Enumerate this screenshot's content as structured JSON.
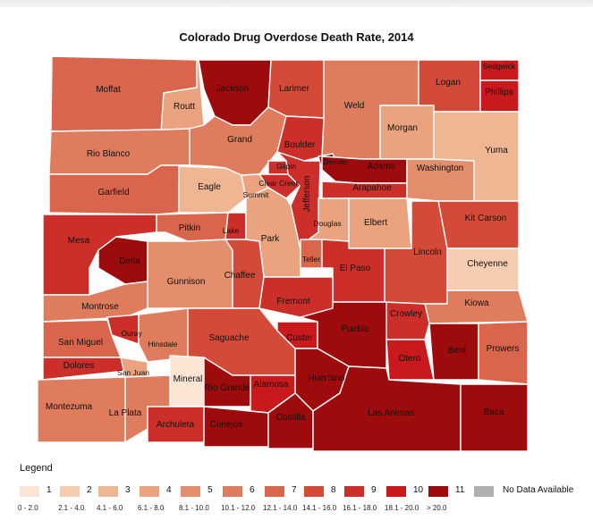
{
  "title": "Colorado Drug Overdose Death Rate, 2014",
  "colors": {
    "1": "#fbe6d6",
    "2": "#f6cdb0",
    "3": "#efb693",
    "4": "#eaa27f",
    "5": "#e38e6c",
    "6": "#df7c5e",
    "7": "#d9654c",
    "8": "#d44a39",
    "9": "#cc2e2a",
    "10": "#c8191c",
    "11": "#9e0b0d",
    "nodata": "#b0b0b0"
  },
  "counties": [
    {
      "name": "Moffat",
      "cls": 7
    },
    {
      "name": "Routt",
      "cls": 4
    },
    {
      "name": "Jackson",
      "cls": 11
    },
    {
      "name": "Larimer",
      "cls": 8
    },
    {
      "name": "Weld",
      "cls": 6
    },
    {
      "name": "Logan",
      "cls": 8
    },
    {
      "name": "Sedgwick",
      "cls": 10
    },
    {
      "name": "Phillips",
      "cls": 10
    },
    {
      "name": "Rio Blanco",
      "cls": 6
    },
    {
      "name": "Grand",
      "cls": 6
    },
    {
      "name": "Boulder",
      "cls": 9
    },
    {
      "name": "Morgan",
      "cls": 4
    },
    {
      "name": "Yuma",
      "cls": 3
    },
    {
      "name": "Garfield",
      "cls": 7
    },
    {
      "name": "Eagle",
      "cls": 3
    },
    {
      "name": "Summit",
      "cls": 4
    },
    {
      "name": "Gilpin",
      "cls": 9
    },
    {
      "name": "Clear Creek",
      "cls": 9
    },
    {
      "name": "Jefferson",
      "cls": 9
    },
    {
      "name": "Denver",
      "cls": 11
    },
    {
      "name": "Adams",
      "cls": 11
    },
    {
      "name": "Arapahoe",
      "cls": 9
    },
    {
      "name": "Washington",
      "cls": 5
    },
    {
      "name": "Douglas",
      "cls": 4
    },
    {
      "name": "Elbert",
      "cls": 4
    },
    {
      "name": "Kit Carson",
      "cls": 8
    },
    {
      "name": "Mesa",
      "cls": 9
    },
    {
      "name": "Delta",
      "cls": 11
    },
    {
      "name": "Pitkin",
      "cls": 7
    },
    {
      "name": "Lake",
      "cls": 9
    },
    {
      "name": "Park",
      "cls": 4
    },
    {
      "name": "Teller",
      "cls": 7
    },
    {
      "name": "El Paso",
      "cls": 9
    },
    {
      "name": "Lincoln",
      "cls": 8
    },
    {
      "name": "Cheyenne",
      "cls": 2
    },
    {
      "name": "Gunnison",
      "cls": 5
    },
    {
      "name": "Chaffee",
      "cls": 8
    },
    {
      "name": "Montrose",
      "cls": 6
    },
    {
      "name": "Fremont",
      "cls": 9
    },
    {
      "name": "Kiowa",
      "cls": 6
    },
    {
      "name": "Crowley",
      "cls": 9
    },
    {
      "name": "Ouray",
      "cls": 9
    },
    {
      "name": "San Miguel",
      "cls": 7
    },
    {
      "name": "Hinsdale",
      "cls": 6
    },
    {
      "name": "Saguache",
      "cls": 8
    },
    {
      "name": "Custer",
      "cls": 10
    },
    {
      "name": "Pueblo",
      "cls": 11
    },
    {
      "name": "Bent",
      "cls": 11
    },
    {
      "name": "Otero",
      "cls": 10
    },
    {
      "name": "Prowers",
      "cls": 7
    },
    {
      "name": "Dolores",
      "cls": 9
    },
    {
      "name": "San Juan",
      "cls": 4
    },
    {
      "name": "Mineral",
      "cls": 1
    },
    {
      "name": "Rio Grande",
      "cls": 11
    },
    {
      "name": "Alamosa",
      "cls": 10
    },
    {
      "name": "Huerfano",
      "cls": 11
    },
    {
      "name": "Montezuma",
      "cls": 6
    },
    {
      "name": "La Plata",
      "cls": 6
    },
    {
      "name": "Archuleta",
      "cls": 9
    },
    {
      "name": "Conejos",
      "cls": 11
    },
    {
      "name": "Costilla",
      "cls": 11
    },
    {
      "name": "Las Animas",
      "cls": 11
    },
    {
      "name": "Baca",
      "cls": 11
    }
  ],
  "legend": {
    "title": "Legend",
    "items": [
      {
        "label": "1",
        "range": "0 - 2.0"
      },
      {
        "label": "2",
        "range": "2.1 - 4.0"
      },
      {
        "label": "3",
        "range": "4.1 - 6.0"
      },
      {
        "label": "4",
        "range": "6.1 - 8.0"
      },
      {
        "label": "5",
        "range": "8.1 - 10.0"
      },
      {
        "label": "6",
        "range": "10.1 - 12.0"
      },
      {
        "label": "7",
        "range": "12.1 - 14.0"
      },
      {
        "label": "8",
        "range": "14.1 - 16.0"
      },
      {
        "label": "9",
        "range": "16.1 - 18.0"
      },
      {
        "label": "10",
        "range": "18.1 - 20.0"
      },
      {
        "label": "11",
        "range": "> 20.0"
      }
    ],
    "nodata_label": "No Data Available"
  }
}
